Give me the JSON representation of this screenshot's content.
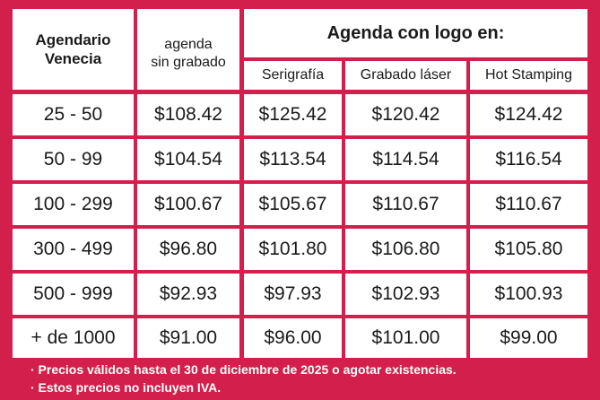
{
  "header": {
    "col1": [
      "Agendario",
      "Venecia"
    ],
    "col2": [
      "agenda",
      "sin grabado"
    ],
    "logo_title": "Agenda con logo en:",
    "sub_cols": [
      "Serigrafía",
      "Grabado láser",
      "Hot Stamping"
    ]
  },
  "rows": [
    {
      "range": "25 - 50",
      "plain": "$108.42",
      "serigrafia": "$125.42",
      "laser": "$120.42",
      "hot": "$124.42"
    },
    {
      "range": "50 - 99",
      "plain": "$104.54",
      "serigrafia": "$113.54",
      "laser": "$114.54",
      "hot": "$116.54"
    },
    {
      "range": "100 - 299",
      "plain": "$100.67",
      "serigrafia": "$105.67",
      "laser": "$110.67",
      "hot": "$110.67"
    },
    {
      "range": "300 - 499",
      "plain": "$96.80",
      "serigrafia": "$101.80",
      "laser": "$106.80",
      "hot": "$105.80"
    },
    {
      "range": "500 - 999",
      "plain": "$92.93",
      "serigrafia": "$97.93",
      "laser": "$102.93",
      "hot": "$100.93"
    },
    {
      "range": "+ de 1000",
      "plain": "$91.00",
      "serigrafia": "$96.00",
      "laser": "$101.00",
      "hot": "$99.00"
    }
  ],
  "footer": [
    "· Precios válidos hasta el 30 de diciembre de 2025 o agotar existencias.",
    "· Estos precios no incluyen IVA."
  ],
  "colors": {
    "background": "#d21f4b",
    "cell": "#ffffff",
    "text": "#1a1a1a"
  }
}
